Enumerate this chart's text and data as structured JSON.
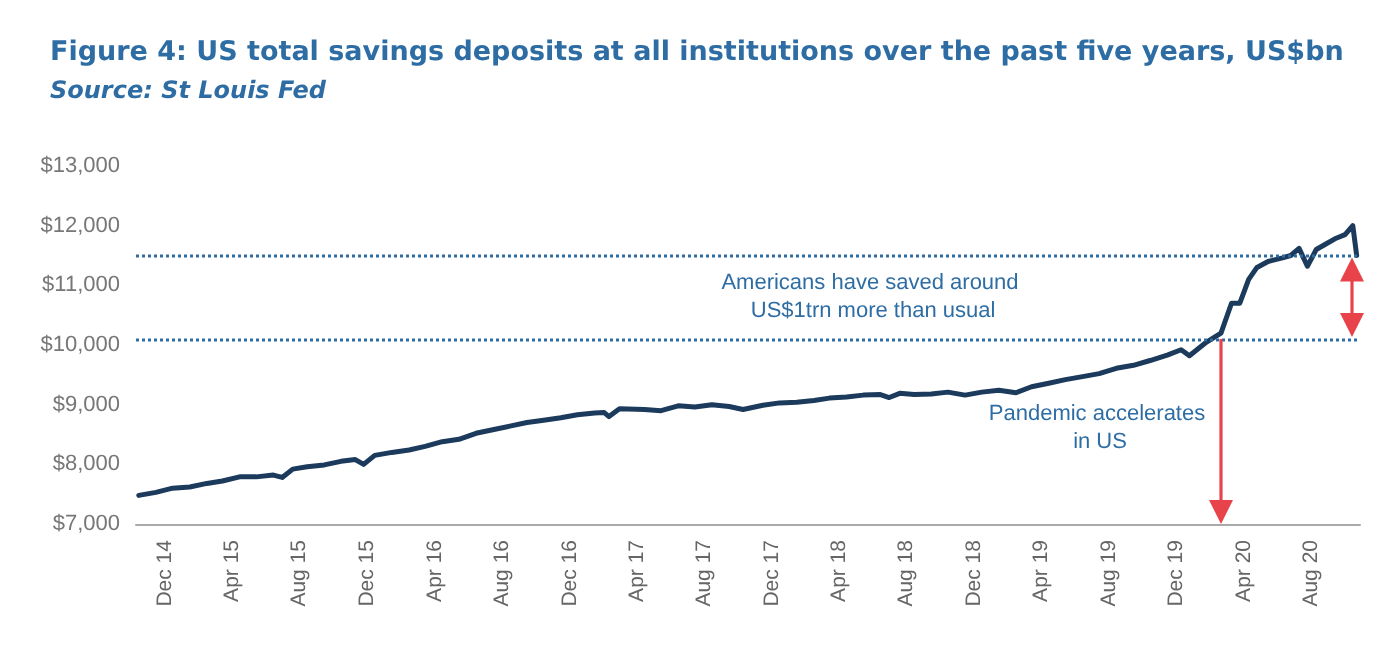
{
  "chart_data": {
    "type": "line",
    "title": "Figure 4: US total savings deposits at all institutions over the past five years, US$bn",
    "subtitle": "Source: St Louis Fed",
    "x": [
      "2014-10-15",
      "2014-11-15",
      "2014-12-15",
      "2015-01-15",
      "2015-02-15",
      "2015-03-15",
      "2015-04-15",
      "2015-05-15",
      "2015-06-15",
      "2015-07-01",
      "2015-07-20",
      "2015-08-15",
      "2015-09-15",
      "2015-10-15",
      "2015-11-10",
      "2015-11-25",
      "2015-12-15",
      "2016-01-15",
      "2016-02-15",
      "2016-03-15",
      "2016-04-15",
      "2016-05-15",
      "2016-06-15",
      "2016-07-15",
      "2016-08-15",
      "2016-09-15",
      "2016-10-15",
      "2016-11-15",
      "2016-12-15",
      "2017-01-15",
      "2017-02-01",
      "2017-02-10",
      "2017-03-01",
      "2017-04-15",
      "2017-05-15",
      "2017-06-15",
      "2017-07-15",
      "2017-08-15",
      "2017-09-15",
      "2017-10-10",
      "2017-11-15",
      "2017-12-15",
      "2018-01-15",
      "2018-02-15",
      "2018-03-15",
      "2018-04-15",
      "2018-05-15",
      "2018-06-15",
      "2018-07-01",
      "2018-07-20",
      "2018-08-15",
      "2018-09-15",
      "2018-10-15",
      "2018-11-15",
      "2018-12-15",
      "2019-01-15",
      "2019-02-15",
      "2019-03-15",
      "2019-04-15",
      "2019-05-15",
      "2019-06-15",
      "2019-07-15",
      "2019-08-15",
      "2019-09-15",
      "2019-10-15",
      "2019-11-15",
      "2019-12-10",
      "2019-12-25",
      "2020-01-25",
      "2020-02-20",
      "2020-03-10",
      "2020-03-25",
      "2020-04-10",
      "2020-04-25",
      "2020-05-15",
      "2020-06-10",
      "2020-06-25",
      "2020-07-10",
      "2020-07-25",
      "2020-08-10",
      "2020-08-25",
      "2020-09-15",
      "2020-10-01",
      "2020-10-15",
      "2020-10-22"
    ],
    "series": [
      {
        "color": "#1b3a5c",
        "values": [
          7480,
          7530,
          7600,
          7620,
          7680,
          7720,
          7790,
          7790,
          7820,
          7780,
          7920,
          7960,
          7990,
          8050,
          8080,
          8000,
          8150,
          8200,
          8240,
          8300,
          8380,
          8420,
          8520,
          8580,
          8640,
          8700,
          8740,
          8780,
          8830,
          8860,
          8870,
          8800,
          8930,
          8920,
          8900,
          8980,
          8960,
          9000,
          8970,
          8920,
          8990,
          9030,
          9040,
          9070,
          9110,
          9130,
          9160,
          9170,
          9120,
          9190,
          9170,
          9180,
          9210,
          9160,
          9210,
          9240,
          9200,
          9300,
          9360,
          9420,
          9470,
          9520,
          9610,
          9660,
          9740,
          9830,
          9920,
          9820,
          10050,
          10200,
          10700,
          10700,
          11100,
          11300,
          11400,
          11460,
          11500,
          11620,
          11320,
          11600,
          11680,
          11790,
          11850,
          12000,
          11500
        ]
      }
    ],
    "xlim": [
      "2014-10-10",
      "2020-10-28"
    ],
    "xticks": [
      {
        "value": "2014-12-01",
        "label": "Dec 14"
      },
      {
        "value": "2015-04-01",
        "label": "Apr 15"
      },
      {
        "value": "2015-08-01",
        "label": "Aug 15"
      },
      {
        "value": "2015-12-01",
        "label": "Dec 15"
      },
      {
        "value": "2016-04-01",
        "label": "Apr 16"
      },
      {
        "value": "2016-08-01",
        "label": "Aug 16"
      },
      {
        "value": "2016-12-01",
        "label": "Dec 16"
      },
      {
        "value": "2017-04-01",
        "label": "Apr 17"
      },
      {
        "value": "2017-08-01",
        "label": "Aug 17"
      },
      {
        "value": "2017-12-01",
        "label": "Dec 17"
      },
      {
        "value": "2018-04-01",
        "label": "Apr 18"
      },
      {
        "value": "2018-08-01",
        "label": "Aug 18"
      },
      {
        "value": "2018-12-01",
        "label": "Dec 18"
      },
      {
        "value": "2019-04-01",
        "label": "Apr 19"
      },
      {
        "value": "2019-08-01",
        "label": "Aug 19"
      },
      {
        "value": "2019-12-01",
        "label": "Dec 19"
      },
      {
        "value": "2020-04-01",
        "label": "Apr 20"
      },
      {
        "value": "2020-08-01",
        "label": "Aug 20"
      }
    ],
    "ylim": [
      7000,
      13000
    ],
    "yticks": [
      {
        "value": 7000,
        "label": "$7,000"
      },
      {
        "value": 8000,
        "label": "$8,000"
      },
      {
        "value": 9000,
        "label": "$9,000"
      },
      {
        "value": 10000,
        "label": "$10,000"
      },
      {
        "value": 11000,
        "label": "$11,000"
      },
      {
        "value": 12000,
        "label": "$12,000"
      },
      {
        "value": 13000,
        "label": "$13,000"
      }
    ],
    "ref_lines": [
      {
        "axis": "y",
        "value": 11500,
        "color": "#2e6da4",
        "line_style": "dotted"
      },
      {
        "axis": "y",
        "value": 10100,
        "color": "#2e6da4",
        "line_style": "dotted"
      }
    ],
    "annotations": [
      "Americans have saved around US$1trn more than usual",
      "Pandemic accelerates in US"
    ],
    "grid": false,
    "marker": "none",
    "line_style": "solid"
  }
}
